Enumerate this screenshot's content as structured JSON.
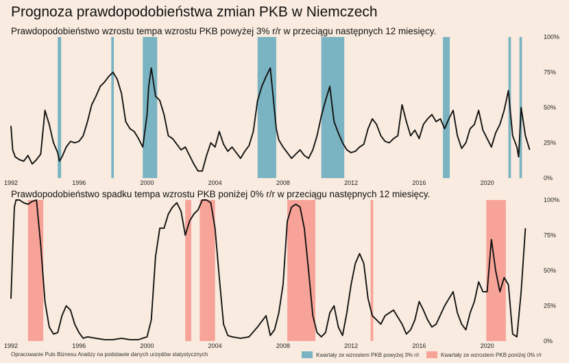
{
  "title": "Prognoza prawdopodobieństwa zmian PKB w Niemczech",
  "source": "Opracowanie Puls Biznesu Analizy na podstawie danych urzędów statystycznych",
  "legend": {
    "up_label": "Kwartały ze wzrostem PKB powyżej 3% r/r",
    "down_label": "Kwartały ze wzrostem PKB poniżej 0% r/r"
  },
  "colors": {
    "background": "#f9ebdf",
    "up_band": "#7ab3c1",
    "down_band": "#f7a398",
    "line": "#111111"
  },
  "chart_data": [
    {
      "type": "line",
      "title": "Prawdopodobieństwo wzrostu tempa wzrostu PKB powyżej 3% r/r w przeciągu następnych 12 miesięcy.",
      "xlim": [
        1992,
        2023
      ],
      "ylim": [
        0,
        100
      ],
      "x_ticks": [
        "1992",
        "1996",
        "2000",
        "2004",
        "2008",
        "2012",
        "2016",
        "2020"
      ],
      "y_ticks": [
        "0%",
        "25%",
        "50%",
        "75%",
        "100%"
      ],
      "grid": false,
      "bands": [
        [
          1994.75,
          1994.95
        ],
        [
          1997.9,
          1998.05
        ],
        [
          1999.75,
          2000.6
        ],
        [
          2006.5,
          2007.6
        ],
        [
          2010.25,
          2011.6
        ],
        [
          2017.4,
          2017.8
        ],
        [
          2021.25,
          2021.4
        ],
        [
          2021.9,
          2022.05
        ]
      ],
      "series": [
        {
          "x": [
            1992.0,
            1992.1,
            1992.25,
            1992.5,
            1992.75,
            1993.0,
            1993.25,
            1993.5,
            1993.75,
            1994.0,
            1994.25,
            1994.5,
            1994.75,
            1994.85,
            1995.0,
            1995.25,
            1995.5,
            1995.75,
            1996.0,
            1996.25,
            1996.5,
            1996.75,
            1997.0,
            1997.25,
            1997.5,
            1997.75,
            1998.0,
            1998.25,
            1998.5,
            1998.75,
            1999.0,
            1999.25,
            1999.5,
            1999.75,
            2000.0,
            2000.1,
            2000.25,
            2000.5,
            2000.75,
            2001.0,
            2001.25,
            2001.5,
            2001.75,
            2002.0,
            2002.25,
            2002.5,
            2002.75,
            2003.0,
            2003.25,
            2003.5,
            2003.75,
            2004.0,
            2004.25,
            2004.5,
            2004.75,
            2005.0,
            2005.25,
            2005.5,
            2005.75,
            2006.0,
            2006.25,
            2006.5,
            2006.75,
            2007.0,
            2007.25,
            2007.4,
            2007.6,
            2007.75,
            2008.0,
            2008.25,
            2008.5,
            2008.75,
            2009.0,
            2009.25,
            2009.5,
            2009.75,
            2010.0,
            2010.25,
            2010.5,
            2010.75,
            2011.0,
            2011.25,
            2011.5,
            2011.75,
            2012.0,
            2012.25,
            2012.5,
            2012.75,
            2013.0,
            2013.25,
            2013.5,
            2013.75,
            2014.0,
            2014.25,
            2014.5,
            2014.75,
            2015.0,
            2015.25,
            2015.5,
            2015.75,
            2016.0,
            2016.25,
            2016.5,
            2016.75,
            2017.0,
            2017.25,
            2017.5,
            2017.75,
            2018.0,
            2018.25,
            2018.5,
            2018.75,
            2019.0,
            2019.25,
            2019.5,
            2019.75,
            2020.0,
            2020.25,
            2020.5,
            2020.75,
            2021.0,
            2021.25,
            2021.5,
            2021.75,
            2021.85,
            2022.0,
            2022.25,
            2022.5
          ],
          "values": [
            37,
            20,
            15,
            13,
            12,
            16,
            10,
            13,
            17,
            48,
            38,
            25,
            18,
            12,
            15,
            22,
            26,
            25,
            26,
            30,
            40,
            52,
            58,
            65,
            68,
            72,
            75,
            70,
            60,
            40,
            35,
            33,
            28,
            22,
            45,
            65,
            78,
            58,
            55,
            45,
            30,
            28,
            24,
            20,
            22,
            16,
            10,
            5,
            5,
            16,
            25,
            22,
            33,
            24,
            19,
            22,
            18,
            14,
            19,
            23,
            33,
            55,
            65,
            72,
            78,
            60,
            35,
            27,
            22,
            18,
            14,
            17,
            20,
            16,
            14,
            20,
            30,
            44,
            55,
            65,
            40,
            32,
            25,
            20,
            18,
            19,
            22,
            24,
            35,
            42,
            38,
            30,
            26,
            25,
            28,
            30,
            52,
            40,
            30,
            34,
            28,
            38,
            42,
            45,
            40,
            42,
            35,
            42,
            48,
            30,
            21,
            25,
            35,
            38,
            48,
            34,
            28,
            22,
            32,
            38,
            48,
            62,
            30,
            22,
            15,
            50,
            30,
            20
          ]
        }
      ]
    },
    {
      "type": "line",
      "title": "Prawdopodobieństwo spadku tempa wzrostu PKB poniżej 0% r/r w przeciągu następnych 12 miesięcy.",
      "xlim": [
        1992,
        2023
      ],
      "ylim": [
        0,
        100
      ],
      "x_ticks": [
        "1992",
        "1996",
        "2000",
        "2004",
        "2008",
        "2012",
        "2016",
        "2020"
      ],
      "y_ticks": [
        "0%",
        "25%",
        "50%",
        "75%",
        "100%"
      ],
      "grid": false,
      "bands": [
        [
          1993.0,
          1993.9
        ],
        [
          2002.25,
          2002.6
        ],
        [
          2003.1,
          2004.0
        ],
        [
          2008.25,
          2009.9
        ],
        [
          2013.15,
          2013.3
        ],
        [
          2019.95,
          2021.1
        ]
      ],
      "series": [
        {
          "x": [
            1992.0,
            1992.1,
            1992.2,
            1992.3,
            1992.5,
            1992.75,
            1993.0,
            1993.25,
            1993.5,
            1993.75,
            1994.0,
            1994.25,
            1994.5,
            1994.75,
            1995.0,
            1995.25,
            1995.5,
            1995.75,
            1996.0,
            1996.25,
            1996.5,
            1997.0,
            1997.5,
            1998.0,
            1998.5,
            1999.0,
            1999.5,
            2000.0,
            2000.25,
            2000.5,
            2000.75,
            2001.0,
            2001.25,
            2001.5,
            2001.75,
            2002.0,
            2002.25,
            2002.5,
            2002.75,
            2003.0,
            2003.25,
            2003.5,
            2003.75,
            2004.0,
            2004.25,
            2004.5,
            2004.75,
            2005.0,
            2005.5,
            2006.0,
            2006.5,
            2007.0,
            2007.25,
            2007.5,
            2007.75,
            2008.0,
            2008.25,
            2008.5,
            2008.75,
            2009.0,
            2009.25,
            2009.5,
            2009.75,
            2010.0,
            2010.25,
            2010.5,
            2010.75,
            2011.0,
            2011.25,
            2011.5,
            2011.75,
            2012.0,
            2012.25,
            2012.5,
            2012.75,
            2013.0,
            2013.25,
            2013.5,
            2013.75,
            2014.0,
            2014.5,
            2015.0,
            2015.25,
            2015.5,
            2015.75,
            2016.0,
            2016.25,
            2016.5,
            2016.75,
            2017.0,
            2017.5,
            2018.0,
            2018.25,
            2018.5,
            2018.75,
            2019.0,
            2019.25,
            2019.5,
            2019.75,
            2020.0,
            2020.25,
            2020.5,
            2020.75,
            2021.0,
            2021.25,
            2021.5,
            2021.75,
            2022.0,
            2022.25
          ],
          "values": [
            30,
            65,
            95,
            100,
            100,
            98,
            97,
            99,
            100,
            68,
            28,
            10,
            5,
            6,
            18,
            25,
            22,
            12,
            6,
            2,
            3,
            2,
            1,
            1,
            2,
            1,
            1,
            3,
            15,
            60,
            80,
            80,
            90,
            95,
            98,
            92,
            75,
            85,
            90,
            93,
            100,
            100,
            98,
            80,
            45,
            12,
            4,
            3,
            2,
            3,
            10,
            18,
            4,
            8,
            20,
            40,
            85,
            95,
            97,
            95,
            80,
            50,
            18,
            6,
            3,
            6,
            20,
            25,
            10,
            4,
            20,
            40,
            55,
            62,
            55,
            30,
            18,
            15,
            12,
            18,
            22,
            12,
            5,
            8,
            15,
            28,
            22,
            15,
            10,
            12,
            25,
            35,
            20,
            12,
            8,
            20,
            28,
            42,
            35,
            35,
            72,
            50,
            35,
            45,
            40,
            5,
            3,
            35,
            80
          ]
        }
      ]
    }
  ]
}
